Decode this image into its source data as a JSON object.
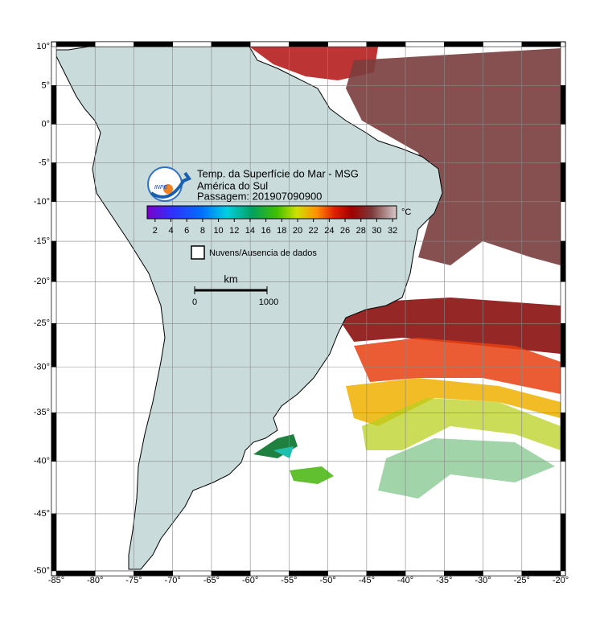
{
  "map": {
    "title": [
      "Temp. da Superfície do Mar - MSG",
      "América do Sul",
      "Passagem: 201907090900"
    ],
    "logo": "INPE",
    "xlim": [
      -85,
      -20
    ],
    "ylim": [
      -50,
      10
    ],
    "projection": "mercator",
    "grid": true,
    "xticks": [
      {
        "value": -85,
        "label": "-85°"
      },
      {
        "value": -80,
        "label": "-80°"
      },
      {
        "value": -75,
        "label": "-75°"
      },
      {
        "value": -70,
        "label": "-70°"
      },
      {
        "value": -65,
        "label": "-65°"
      },
      {
        "value": -60,
        "label": "-60°"
      },
      {
        "value": -55,
        "label": "-55°"
      },
      {
        "value": -50,
        "label": "-50°"
      },
      {
        "value": -45,
        "label": "-45°"
      },
      {
        "value": -40,
        "label": "-40°"
      },
      {
        "value": -35,
        "label": "-35°"
      },
      {
        "value": -30,
        "label": "-30°"
      },
      {
        "value": -25,
        "label": "-25°"
      },
      {
        "value": -20,
        "label": "-20°"
      }
    ],
    "yticks": [
      {
        "value": 10,
        "label": "10°"
      },
      {
        "value": 5,
        "label": "5°"
      },
      {
        "value": 0,
        "label": "0°"
      },
      {
        "value": -5,
        "label": "-5°"
      },
      {
        "value": -10,
        "label": "-10°"
      },
      {
        "value": -15,
        "label": "-15°"
      },
      {
        "value": -20,
        "label": "-20°"
      },
      {
        "value": -25,
        "label": "-25°"
      },
      {
        "value": -30,
        "label": "-30°"
      },
      {
        "value": -35,
        "label": "-35°"
      },
      {
        "value": -40,
        "label": "-40°"
      },
      {
        "value": -45,
        "label": "-45°"
      },
      {
        "value": -50,
        "label": "-50°"
      }
    ],
    "colorbar": {
      "clim": [
        1,
        32.5
      ],
      "ticks": [
        2,
        4,
        6,
        8,
        10,
        12,
        14,
        16,
        18,
        20,
        22,
        24,
        26,
        28,
        30,
        32
      ],
      "unit": "°C"
    },
    "legend": "Nuvens/Ausencia de dados",
    "scale_bar": {
      "unit": "km",
      "labels": [
        "0",
        "1000"
      ]
    }
  }
}
